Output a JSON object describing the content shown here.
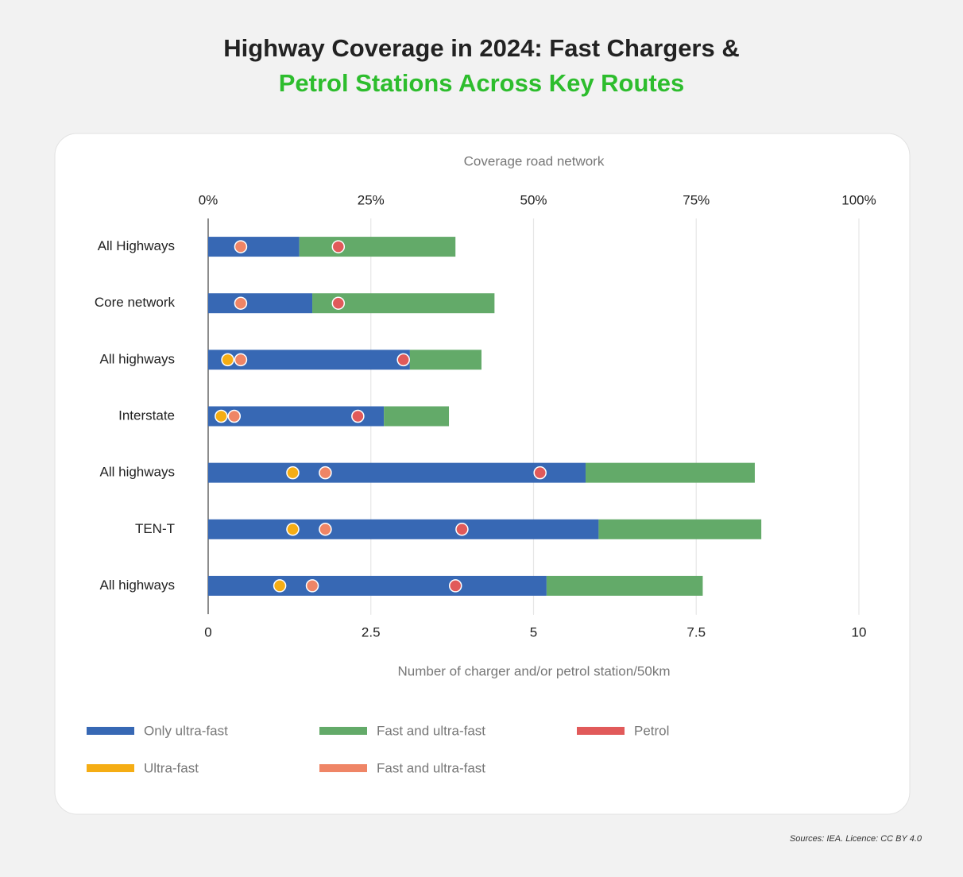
{
  "chart_data": {
    "type": "bar",
    "title": "Highway Coverage in 2024: Fast Chargers &",
    "subtitle": "Petrol Stations Across Key Routes",
    "x2label": "Coverage road network",
    "xlabel": "Number of charger and/or petrol station/50km",
    "source": "Sources: IEA. Licence: CC BY 4.0",
    "categories": [
      "All Highways",
      "Core network",
      "All highways",
      "Interstate",
      "All highways",
      "TEN-T",
      "All highways"
    ],
    "x2lim": [
      0,
      100
    ],
    "x2ticks": [
      {
        "value": 0,
        "label": "0%"
      },
      {
        "value": 25,
        "label": "25%"
      },
      {
        "value": 50,
        "label": "50%"
      },
      {
        "value": 75,
        "label": "75%"
      },
      {
        "value": 100,
        "label": "100%"
      }
    ],
    "xlim": [
      0,
      10
    ],
    "xticks": [
      0,
      2.5,
      5,
      7.5,
      10
    ],
    "grid": true,
    "series": [
      {
        "name": "Only ultra-fast",
        "type": "stacked-bar",
        "axis": "x2",
        "color": "#3768b4",
        "values": [
          14,
          16,
          31,
          27,
          58,
          60,
          52
        ]
      },
      {
        "name": "Fast and ultra-fast",
        "type": "stacked-bar",
        "axis": "x2",
        "color": "#63aa69",
        "values": [
          24,
          28,
          11,
          10,
          26,
          25,
          24
        ]
      },
      {
        "name": "Petrol",
        "type": "dot",
        "axis": "x",
        "color": "#e15a5a",
        "values": [
          2.0,
          2.0,
          3.0,
          2.3,
          5.1,
          3.9,
          3.8
        ]
      },
      {
        "name": "Ultra-fast",
        "type": "dot",
        "axis": "x",
        "color": "#f5ad14",
        "values": [
          null,
          null,
          0.3,
          0.2,
          1.3,
          1.3,
          1.1
        ]
      },
      {
        "name": "Fast and ultra-fast",
        "type": "dot",
        "axis": "x",
        "color": "#ef8566",
        "values": [
          0.5,
          0.5,
          0.5,
          0.4,
          1.8,
          1.8,
          1.6
        ]
      }
    ]
  }
}
